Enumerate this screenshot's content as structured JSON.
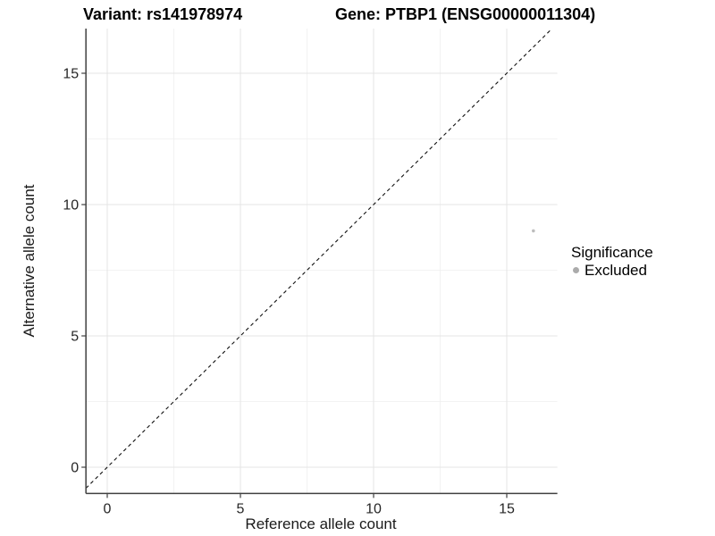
{
  "titles": {
    "variant": "Variant: rs141978974",
    "gene": "Gene: PTBP1 (ENSG00000011304)"
  },
  "axes": {
    "x": {
      "label": "Reference allele count"
    },
    "y": {
      "label": "Alternative allele count"
    }
  },
  "legend": {
    "title": "Significance",
    "items": [
      {
        "label": "Excluded",
        "color": "#ababab"
      }
    ]
  },
  "chart_data": {
    "type": "scatter",
    "title": "Variant: rs141978974 | Gene: PTBP1 (ENSG00000011304)",
    "xlabel": "Reference allele count",
    "ylabel": "Alternative allele count",
    "xlim": [
      -0.8,
      16.9
    ],
    "ylim": [
      -1.0,
      16.7
    ],
    "x_ticks": [
      0,
      5,
      10,
      15
    ],
    "y_ticks": [
      0,
      5,
      10,
      15
    ],
    "x_minor_ticks": [
      2.5,
      7.5,
      12.5
    ],
    "y_minor_ticks": [
      2.5,
      7.5,
      12.5
    ],
    "grid": "major+minor",
    "legend_position": "right",
    "series": [
      {
        "name": "Excluded",
        "color": "#bdbdbd",
        "points": [
          [
            16,
            9
          ]
        ]
      }
    ],
    "reference_line": {
      "equation": "y = x",
      "style": "dashed",
      "color": "#111111"
    },
    "colors": {
      "grid_major": "#e4e4e4",
      "grid_minor": "#efefef",
      "axis_line": "#404040",
      "tick": "#404040",
      "tick_text": "#262626",
      "background": "#ffffff"
    }
  }
}
